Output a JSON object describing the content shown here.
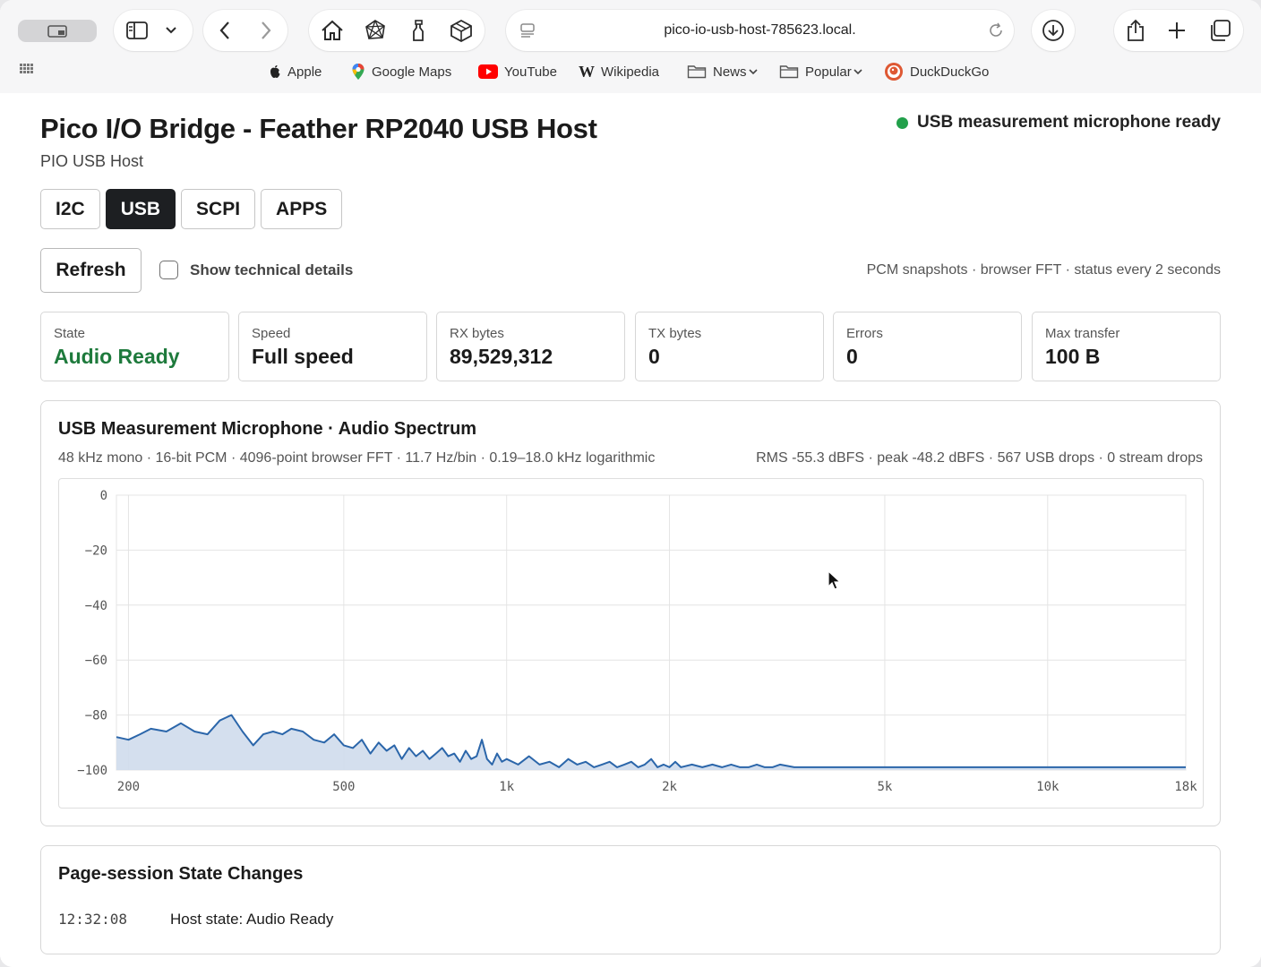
{
  "browser": {
    "url": "pico-io-usb-host-785623.local.",
    "bookmarks": [
      {
        "label": "Apple",
        "icon": "apple-icon"
      },
      {
        "label": "Google Maps",
        "icon": "map-pin-icon"
      },
      {
        "label": "YouTube",
        "icon": "youtube-icon"
      },
      {
        "label": "Wikipedia",
        "icon": "wikipedia-icon"
      },
      {
        "label": "News",
        "icon": "folder-icon"
      },
      {
        "label": "Popular",
        "icon": "folder-icon"
      },
      {
        "label": "DuckDuckGo",
        "icon": "duckduckgo-icon"
      }
    ]
  },
  "header": {
    "title": "Pico I/O Bridge - Feather RP2040 USB Host",
    "subtitle": "PIO USB Host",
    "status": "USB measurement microphone ready",
    "status_color": "#22a04b"
  },
  "tabs": [
    {
      "label": "I2C",
      "active": false
    },
    {
      "label": "USB",
      "active": true
    },
    {
      "label": "SCPI",
      "active": false
    },
    {
      "label": "APPS",
      "active": false
    }
  ],
  "controls": {
    "refresh_label": "Refresh",
    "tech_details_label": "Show technical details",
    "tech_details_checked": false,
    "cadence": "PCM snapshots · browser FFT · status every 2 seconds"
  },
  "cards": [
    {
      "label": "State",
      "value": "Audio Ready",
      "accent": "#1e7a3c"
    },
    {
      "label": "Speed",
      "value": "Full speed"
    },
    {
      "label": "RX bytes",
      "value": "89,529,312"
    },
    {
      "label": "TX bytes",
      "value": "0"
    },
    {
      "label": "Errors",
      "value": "0"
    },
    {
      "label": "Max transfer",
      "value": "100 B"
    }
  ],
  "spectrum": {
    "title": "USB Measurement Microphone · Audio Spectrum",
    "meta_left": "48 kHz mono · 16-bit PCM · 4096-point browser FFT · 11.7 Hz/bin · 0.19–18.0 kHz logarithmic",
    "meta_right": "RMS -55.3 dBFS · peak -48.2 dBFS · 567 USB drops · 0 stream drops"
  },
  "chart_data": {
    "type": "area",
    "x_scale": "log",
    "xlim": [
      190,
      18000
    ],
    "ylim": [
      -100,
      0
    ],
    "grid": true,
    "x_ticks": [
      200,
      500,
      1000,
      2000,
      5000,
      10000,
      18000
    ],
    "x_tick_labels": [
      "200",
      "500",
      "1k",
      "2k",
      "5k",
      "10k",
      "18k"
    ],
    "y_ticks": [
      0,
      -20,
      -40,
      -60,
      -80,
      -100
    ],
    "y_tick_labels": [
      "0",
      "−20",
      "−40",
      "−60",
      "−80",
      "−100"
    ],
    "line_color": "#2b66aa",
    "fill_color": "#cfdcec",
    "series": [
      {
        "x": [
          190,
          200,
          210,
          220,
          235,
          250,
          265,
          280,
          295,
          310,
          325,
          340,
          355,
          370,
          385,
          400,
          420,
          440,
          460,
          480,
          500,
          520,
          540,
          560,
          580,
          600,
          620,
          640,
          660,
          680,
          700,
          720,
          740,
          760,
          780,
          800,
          820,
          840,
          860,
          880,
          900,
          920,
          940,
          960,
          980,
          1000,
          1050,
          1100,
          1150,
          1200,
          1250,
          1300,
          1350,
          1400,
          1450,
          1500,
          1550,
          1600,
          1650,
          1700,
          1750,
          1800,
          1850,
          1900,
          1950,
          2000,
          2050,
          2100,
          2200,
          2300,
          2400,
          2500,
          2600,
          2700,
          2800,
          2900,
          3000,
          3100,
          3200,
          3400,
          3600,
          3800,
          4000,
          4250,
          4500,
          4750,
          5000,
          5500,
          6000,
          6500,
          7000,
          7500,
          8000,
          9000,
          10000,
          11000,
          12000,
          13000,
          14000,
          15000,
          16000,
          17000,
          18000
        ],
        "y": [
          -88,
          -89,
          -87,
          -85,
          -86,
          -83,
          -86,
          -87,
          -82,
          -80,
          -86,
          -91,
          -87,
          -86,
          -87,
          -85,
          -86,
          -89,
          -90,
          -87,
          -91,
          -92,
          -89,
          -94,
          -90,
          -93,
          -91,
          -96,
          -92,
          -95,
          -93,
          -96,
          -94,
          -92,
          -95,
          -94,
          -97,
          -93,
          -96,
          -95,
          -89,
          -96,
          -98,
          -94,
          -97,
          -96,
          -98,
          -95,
          -98,
          -97,
          -99,
          -96,
          -98,
          -97,
          -99,
          -98,
          -97,
          -99,
          -98,
          -97,
          -99,
          -98,
          -96,
          -99,
          -98,
          -99,
          -97,
          -99,
          -98,
          -99,
          -98,
          -99,
          -98,
          -99,
          -99,
          -98,
          -99,
          -99,
          -98,
          -99,
          -99,
          -99,
          -99,
          -99,
          -99,
          -99,
          -99,
          -99,
          -99,
          -99,
          -99,
          -99,
          -99,
          -99,
          -99,
          -99,
          -99,
          -99,
          -99,
          -99,
          -99,
          -99,
          -99
        ]
      }
    ]
  },
  "session": {
    "title": "Page-session State Changes",
    "entries": [
      {
        "time": "12:32:08",
        "message": "Host state: Audio Ready"
      }
    ]
  }
}
